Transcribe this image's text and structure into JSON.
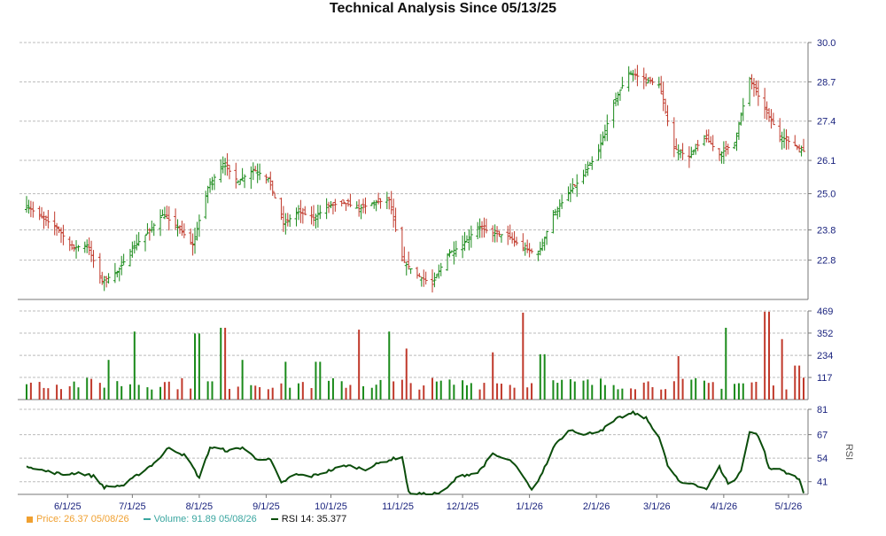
{
  "title": "Technical Analysis Since 05/13/25",
  "legend": {
    "price": "Price: 26.37  05/08/26",
    "volume": "Volume: 91.89  05/08/26",
    "rsi": "RSI 14: 35.377"
  },
  "colors": {
    "up": "#1a8a1a",
    "down": "#c0392b",
    "rsi": "#0b4d0b",
    "price_legend": "#f0a030",
    "volume_legend": "#3aa6a0",
    "axis_text": "#1a237e",
    "grid": "#bbbbbb"
  },
  "chart_data": [
    {
      "type": "candlestick",
      "panel": "price",
      "x_labels": [
        "6/1/25",
        "7/1/25",
        "8/1/25",
        "9/1/25",
        "10/1/25",
        "11/1/25",
        "12/1/25",
        "1/1/26",
        "2/1/26",
        "3/1/26",
        "4/1/26",
        "5/1/26"
      ],
      "y_ticks": [
        22.8,
        23.8,
        25.0,
        26.1,
        27.4,
        28.7,
        30.0
      ],
      "ylim": [
        21.5,
        30.0
      ],
      "anchors": [
        [
          "2025-05-13",
          24.6
        ],
        [
          "2025-05-20",
          24.2
        ],
        [
          "2025-05-27",
          23.9
        ],
        [
          "2025-06-03",
          23.2
        ],
        [
          "2025-06-10",
          23.3
        ],
        [
          "2025-06-17",
          22.1
        ],
        [
          "2025-06-24",
          22.4
        ],
        [
          "2025-07-01",
          23.2
        ],
        [
          "2025-07-08",
          23.7
        ],
        [
          "2025-07-15",
          24.3
        ],
        [
          "2025-07-22",
          23.9
        ],
        [
          "2025-07-29",
          23.3
        ],
        [
          "2025-08-05",
          25.2
        ],
        [
          "2025-08-12",
          26.0
        ],
        [
          "2025-08-19",
          25.4
        ],
        [
          "2025-08-26",
          25.8
        ],
        [
          "2025-09-02",
          25.5
        ],
        [
          "2025-09-09",
          24.0
        ],
        [
          "2025-09-16",
          24.4
        ],
        [
          "2025-09-23",
          24.2
        ],
        [
          "2025-09-30",
          24.6
        ],
        [
          "2025-10-07",
          24.7
        ],
        [
          "2025-10-14",
          24.5
        ],
        [
          "2025-10-21",
          24.7
        ],
        [
          "2025-10-28",
          24.8
        ],
        [
          "2025-11-03",
          22.8
        ],
        [
          "2025-11-10",
          22.3
        ],
        [
          "2025-11-17",
          22.0
        ],
        [
          "2025-11-24",
          23.0
        ],
        [
          "2025-12-01",
          23.3
        ],
        [
          "2025-12-08",
          23.9
        ],
        [
          "2025-12-15",
          23.7
        ],
        [
          "2025-12-22",
          23.6
        ],
        [
          "2025-12-29",
          23.2
        ],
        [
          "2026-01-05",
          23.0
        ],
        [
          "2026-01-12",
          24.3
        ],
        [
          "2026-01-19",
          25.0
        ],
        [
          "2026-01-26",
          25.6
        ],
        [
          "2026-02-02",
          26.4
        ],
        [
          "2026-02-09",
          28.0
        ],
        [
          "2026-02-16",
          29.0
        ],
        [
          "2026-02-23",
          28.8
        ],
        [
          "2026-03-02",
          28.6
        ],
        [
          "2026-03-09",
          26.5
        ],
        [
          "2026-03-16",
          26.2
        ],
        [
          "2026-03-23",
          26.9
        ],
        [
          "2026-03-30",
          26.3
        ],
        [
          "2026-04-06",
          26.7
        ],
        [
          "2026-04-13",
          28.8
        ],
        [
          "2026-04-20",
          27.8
        ],
        [
          "2026-04-27",
          26.9
        ],
        [
          "2026-05-04",
          26.6
        ],
        [
          "2026-05-08",
          26.4
        ]
      ]
    },
    {
      "type": "bar",
      "panel": "volume",
      "y_ticks": [
        117,
        234,
        352,
        469
      ],
      "ylim": [
        0,
        469
      ],
      "typical": 117,
      "spikes": [
        [
          "2025-06-20",
          210
        ],
        [
          "2025-07-02",
          360
        ],
        [
          "2025-07-31",
          350
        ],
        [
          "2025-08-12",
          380
        ],
        [
          "2025-08-21",
          210
        ],
        [
          "2025-09-10",
          200
        ],
        [
          "2025-09-25",
          200
        ],
        [
          "2025-10-13",
          370
        ],
        [
          "2025-10-27",
          360
        ],
        [
          "2025-11-05",
          270
        ],
        [
          "2025-12-15",
          250
        ],
        [
          "2025-12-28",
          460
        ],
        [
          "2026-01-07",
          240
        ],
        [
          "2026-03-11",
          230
        ],
        [
          "2026-04-03",
          380
        ],
        [
          "2026-04-21",
          465
        ],
        [
          "2026-04-28",
          320
        ],
        [
          "2026-05-05",
          180
        ]
      ]
    },
    {
      "type": "line",
      "panel": "rsi",
      "name": "RSI",
      "y_ticks": [
        41,
        54,
        67,
        81
      ],
      "ylim": [
        34,
        81
      ],
      "ylabel": "RSI",
      "anchors": [
        [
          "2025-05-13",
          50
        ],
        [
          "2025-05-21",
          47
        ],
        [
          "2025-05-30",
          45
        ],
        [
          "2025-06-06",
          46
        ],
        [
          "2025-06-13",
          44
        ],
        [
          "2025-06-18",
          38
        ],
        [
          "2025-06-27",
          39
        ],
        [
          "2025-07-06",
          47
        ],
        [
          "2025-07-12",
          52
        ],
        [
          "2025-07-18",
          60
        ],
        [
          "2025-07-26",
          55
        ],
        [
          "2025-08-01",
          43
        ],
        [
          "2025-08-06",
          60
        ],
        [
          "2025-08-15",
          58
        ],
        [
          "2025-08-21",
          60
        ],
        [
          "2025-08-27",
          54
        ],
        [
          "2025-09-03",
          53
        ],
        [
          "2025-09-08",
          40
        ],
        [
          "2025-09-14",
          45
        ],
        [
          "2025-09-22",
          44
        ],
        [
          "2025-09-30",
          47
        ],
        [
          "2025-10-08",
          50
        ],
        [
          "2025-10-17",
          48
        ],
        [
          "2025-10-25",
          52
        ],
        [
          "2025-11-03",
          55
        ],
        [
          "2025-11-06",
          35
        ],
        [
          "2025-11-14",
          34
        ],
        [
          "2025-11-22",
          35
        ],
        [
          "2025-11-29",
          44
        ],
        [
          "2025-12-08",
          46
        ],
        [
          "2025-12-15",
          56
        ],
        [
          "2025-12-24",
          52
        ],
        [
          "2025-12-30",
          42
        ],
        [
          "2026-01-02",
          36
        ],
        [
          "2026-01-07",
          46
        ],
        [
          "2026-01-13",
          62
        ],
        [
          "2026-01-20",
          70
        ],
        [
          "2026-01-27",
          67
        ],
        [
          "2026-02-04",
          70
        ],
        [
          "2026-02-11",
          76
        ],
        [
          "2026-02-18",
          79
        ],
        [
          "2026-02-24",
          76
        ],
        [
          "2026-03-02",
          66
        ],
        [
          "2026-03-06",
          50
        ],
        [
          "2026-03-12",
          40
        ],
        [
          "2026-03-18",
          40
        ],
        [
          "2026-03-24",
          37
        ],
        [
          "2026-03-30",
          49
        ],
        [
          "2026-04-04",
          38
        ],
        [
          "2026-04-09",
          47
        ],
        [
          "2026-04-13",
          69
        ],
        [
          "2026-04-18",
          66
        ],
        [
          "2026-04-22",
          48
        ],
        [
          "2026-04-27",
          48
        ],
        [
          "2026-05-02",
          45
        ],
        [
          "2026-05-06",
          42
        ],
        [
          "2026-05-08",
          35.4
        ]
      ]
    }
  ]
}
